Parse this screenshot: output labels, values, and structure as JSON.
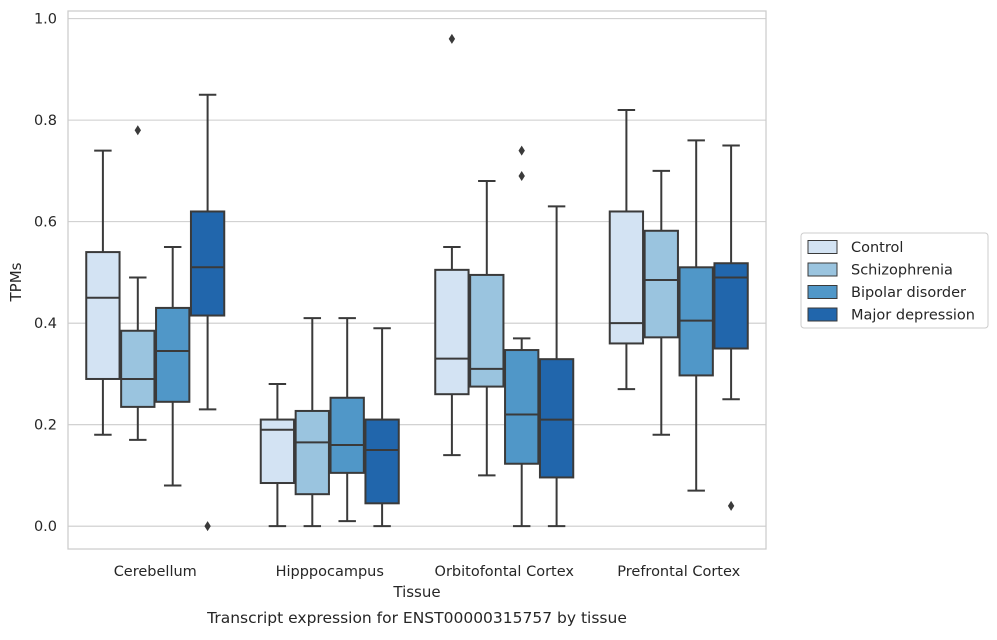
{
  "chart_data": {
    "type": "boxplot",
    "title": "",
    "caption": "Transcript expression for ENST00000315757 by tissue",
    "xlabel": "Tissue",
    "ylabel": "TPMs",
    "ylim": [
      -0.045,
      1.015
    ],
    "yticks": [
      "0.0",
      "0.2",
      "0.4",
      "0.6",
      "0.8",
      "1.0"
    ],
    "grid": "horizontal",
    "legend_position": "right-outside",
    "categories": [
      "Cerebellum",
      "Hipppocampus",
      "Orbitofontal Cortex",
      "Prefrontal Cortex"
    ],
    "series": [
      {
        "name": "Control",
        "color": "#d3e3f3",
        "boxes": [
          {
            "whislo": 0.18,
            "q1": 0.29,
            "med": 0.45,
            "q3": 0.54,
            "whishi": 0.74,
            "fliers": []
          },
          {
            "whislo": 0.0,
            "q1": 0.085,
            "med": 0.19,
            "q3": 0.21,
            "whishi": 0.28,
            "fliers": []
          },
          {
            "whislo": 0.14,
            "q1": 0.26,
            "med": 0.33,
            "q3": 0.505,
            "whishi": 0.55,
            "fliers": [
              0.96
            ]
          },
          {
            "whislo": 0.27,
            "q1": 0.36,
            "med": 0.4,
            "q3": 0.62,
            "whishi": 0.82,
            "fliers": []
          }
        ]
      },
      {
        "name": "Schizophrenia",
        "color": "#9ac4df",
        "boxes": [
          {
            "whislo": 0.17,
            "q1": 0.235,
            "med": 0.29,
            "q3": 0.385,
            "whishi": 0.49,
            "fliers": [
              0.78
            ]
          },
          {
            "whislo": 0.0,
            "q1": 0.063,
            "med": 0.165,
            "q3": 0.227,
            "whishi": 0.41,
            "fliers": []
          },
          {
            "whislo": 0.1,
            "q1": 0.275,
            "med": 0.31,
            "q3": 0.495,
            "whishi": 0.68,
            "fliers": []
          },
          {
            "whislo": 0.18,
            "q1": 0.372,
            "med": 0.485,
            "q3": 0.582,
            "whishi": 0.7,
            "fliers": []
          }
        ]
      },
      {
        "name": "Bipolar disorder",
        "color": "#5097c8",
        "boxes": [
          {
            "whislo": 0.08,
            "q1": 0.245,
            "med": 0.345,
            "q3": 0.43,
            "whishi": 0.55,
            "fliers": []
          },
          {
            "whislo": 0.01,
            "q1": 0.105,
            "med": 0.16,
            "q3": 0.253,
            "whishi": 0.41,
            "fliers": []
          },
          {
            "whislo": 0.0,
            "q1": 0.123,
            "med": 0.22,
            "q3": 0.347,
            "whishi": 0.37,
            "fliers": [
              0.69,
              0.74
            ]
          },
          {
            "whislo": 0.07,
            "q1": 0.297,
            "med": 0.405,
            "q3": 0.51,
            "whishi": 0.76,
            "fliers": []
          }
        ]
      },
      {
        "name": "Major depression",
        "color": "#2166ac",
        "boxes": [
          {
            "whislo": 0.23,
            "q1": 0.415,
            "med": 0.51,
            "q3": 0.62,
            "whishi": 0.85,
            "fliers": [
              0.0
            ]
          },
          {
            "whislo": 0.0,
            "q1": 0.045,
            "med": 0.15,
            "q3": 0.21,
            "whishi": 0.39,
            "fliers": []
          },
          {
            "whislo": 0.0,
            "q1": 0.096,
            "med": 0.21,
            "q3": 0.329,
            "whishi": 0.63,
            "fliers": []
          },
          {
            "whislo": 0.25,
            "q1": 0.35,
            "med": 0.49,
            "q3": 0.518,
            "whishi": 0.75,
            "fliers": [
              0.04
            ]
          }
        ]
      }
    ]
  }
}
